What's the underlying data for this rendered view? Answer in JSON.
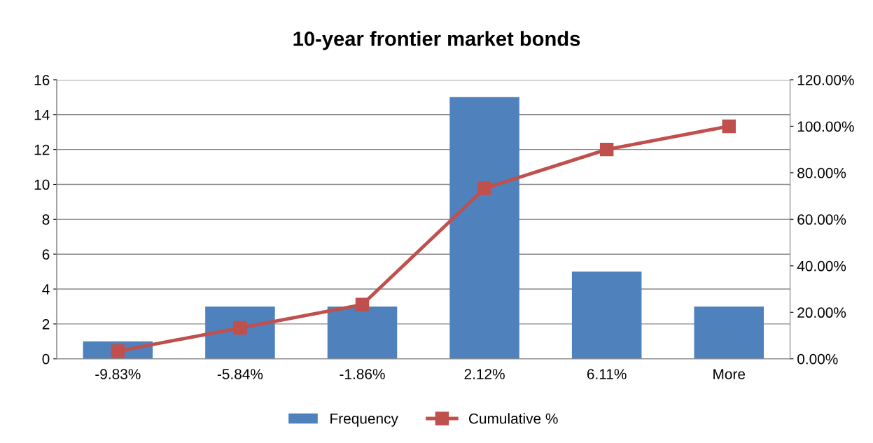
{
  "chart_data": {
    "type": "bar",
    "title": "10-year frontier market bonds",
    "categories": [
      "-9.83%",
      "-5.84%",
      "-1.86%",
      "2.12%",
      "6.11%",
      "More"
    ],
    "series": [
      {
        "name": "Frequency",
        "color": "#4f81bd",
        "values": [
          1,
          3,
          3,
          15,
          5,
          3
        ]
      },
      {
        "name": "Cumulative %",
        "type": "line",
        "axis": "y2",
        "color": "#c0504d",
        "marker": "square",
        "line_style": "solid",
        "values": [
          3.3,
          13.3,
          23.3,
          73.3,
          90,
          100
        ]
      }
    ],
    "ylim": [
      0,
      16
    ],
    "yticks": [
      0,
      2,
      4,
      6,
      8,
      10,
      12,
      14,
      16
    ],
    "y2lim": [
      0,
      120
    ],
    "y2ticks": [
      {
        "value": 0,
        "label": "0.00%"
      },
      {
        "value": 20,
        "label": "20.00%"
      },
      {
        "value": 40,
        "label": "40.00%"
      },
      {
        "value": 60,
        "label": "60.00%"
      },
      {
        "value": 80,
        "label": "80.00%"
      },
      {
        "value": 100,
        "label": "100.00%"
      },
      {
        "value": 120,
        "label": "120.00%"
      }
    ],
    "grid": "y",
    "legend": "bottom"
  }
}
